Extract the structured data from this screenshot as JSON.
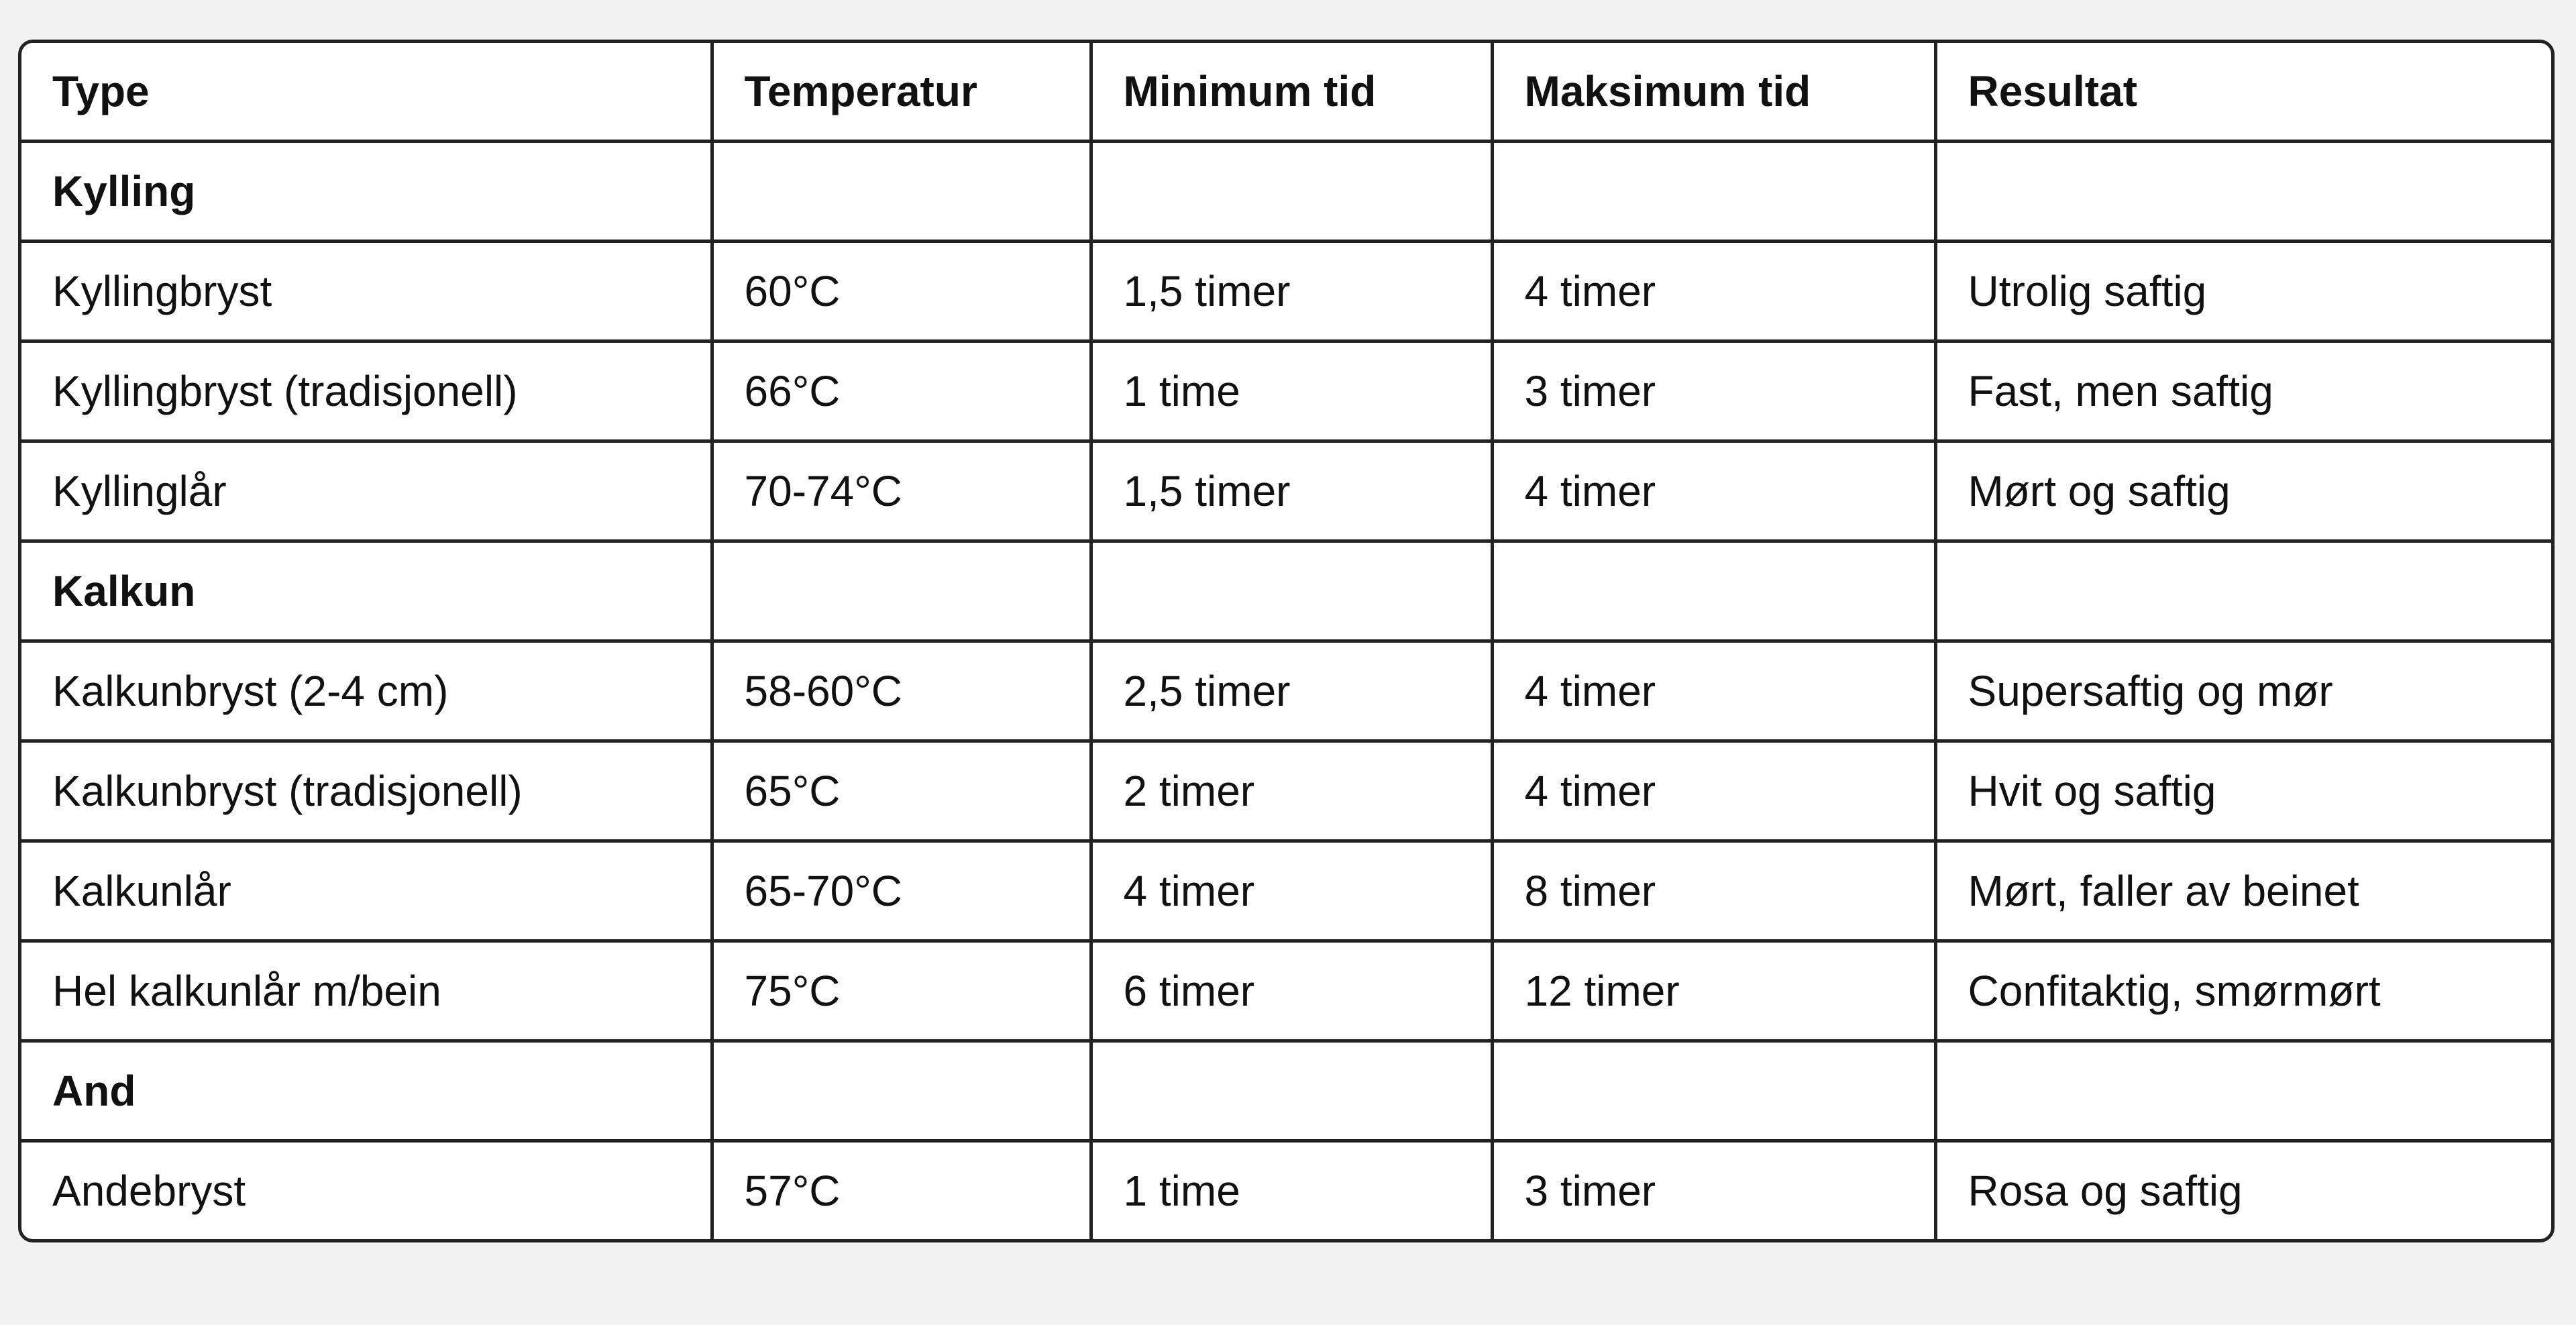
{
  "table": {
    "header": [
      "Type",
      "Temperatur",
      "Minimum tid",
      "Maksimum tid",
      "Resultat"
    ],
    "rows": [
      {
        "section": "Kylling"
      },
      {
        "cells": [
          "Kyllingbryst",
          "60°C",
          "1,5 timer",
          "4 timer",
          "Utrolig saftig"
        ]
      },
      {
        "cells": [
          "Kyllingbryst (tradisjonell)",
          "66°C",
          "1 time",
          "3 timer",
          "Fast, men saftig"
        ]
      },
      {
        "cells": [
          "Kyllinglår",
          "70-74°C",
          "1,5 timer",
          "4 timer",
          "Mørt og saftig"
        ]
      },
      {
        "section": "Kalkun"
      },
      {
        "cells": [
          "Kalkunbryst (2-4 cm)",
          "58-60°C",
          "2,5 timer",
          "4 timer",
          "Supersaftig og mør"
        ]
      },
      {
        "cells": [
          "Kalkunbryst (tradisjonell)",
          "65°C",
          "2 timer",
          "4 timer",
          "Hvit og saftig"
        ]
      },
      {
        "cells": [
          "Kalkunlår",
          "65-70°C",
          "4 timer",
          "8 timer",
          "Mørt, faller av beinet"
        ]
      },
      {
        "cells": [
          "Hel kalkunlår m/bein",
          "75°C",
          "6 timer",
          "12 timer",
          "Confitaktig, smørmørt"
        ]
      },
      {
        "section": "And"
      },
      {
        "cells": [
          "Andebryst",
          "57°C",
          "1 time",
          "3 timer",
          "Rosa og saftig"
        ]
      }
    ]
  }
}
